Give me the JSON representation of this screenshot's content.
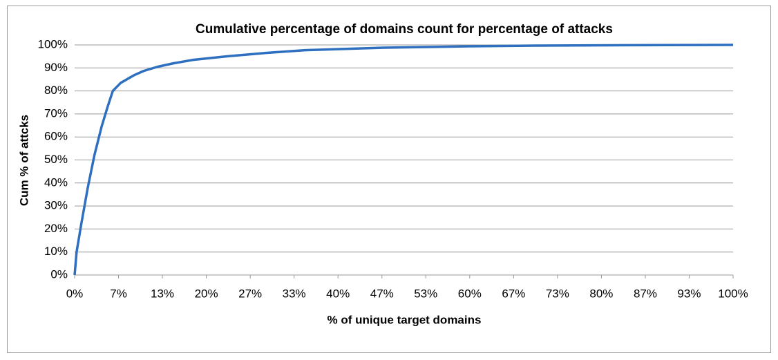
{
  "chart_data": {
    "type": "line",
    "title": "Cumulative percentage of domains count for percentage of attacks",
    "xlabel": "% of unique target domains",
    "ylabel": "Cum % of attcks",
    "x": [
      0,
      0.3,
      1,
      2,
      3,
      4.1,
      5,
      5.8,
      7,
      9,
      10.5,
      12.6,
      15,
      18,
      23,
      29,
      35,
      47,
      60,
      70,
      85,
      100
    ],
    "series": [
      {
        "name": "Cum % of attcks",
        "color": "#2e6fc0",
        "values": [
          0,
          10,
          22,
          38,
          52,
          64.5,
          73,
          80,
          83.5,
          86.8,
          88.7,
          90.5,
          92,
          93.5,
          95,
          96.5,
          97.7,
          98.8,
          99.4,
          99.7,
          99.9,
          100
        ]
      }
    ],
    "xlim": [
      0,
      100
    ],
    "xticks": [
      {
        "value": 0,
        "label": "0%"
      },
      {
        "value": 6.67,
        "label": "7%"
      },
      {
        "value": 13.33,
        "label": "13%"
      },
      {
        "value": 20,
        "label": "20%"
      },
      {
        "value": 26.67,
        "label": "27%"
      },
      {
        "value": 33.33,
        "label": "33%"
      },
      {
        "value": 40,
        "label": "40%"
      },
      {
        "value": 46.67,
        "label": "47%"
      },
      {
        "value": 53.33,
        "label": "53%"
      },
      {
        "value": 60,
        "label": "60%"
      },
      {
        "value": 66.67,
        "label": "67%"
      },
      {
        "value": 73.33,
        "label": "73%"
      },
      {
        "value": 80,
        "label": "80%"
      },
      {
        "value": 86.67,
        "label": "87%"
      },
      {
        "value": 93.33,
        "label": "93%"
      },
      {
        "value": 100,
        "label": "100%"
      }
    ],
    "ylim": [
      0,
      100
    ],
    "yticks": [
      {
        "value": 0,
        "label": "0%"
      },
      {
        "value": 10,
        "label": "10%"
      },
      {
        "value": 20,
        "label": "20%"
      },
      {
        "value": 30,
        "label": "30%"
      },
      {
        "value": 40,
        "label": "40%"
      },
      {
        "value": 50,
        "label": "50%"
      },
      {
        "value": 60,
        "label": "60%"
      },
      {
        "value": 70,
        "label": "70%"
      },
      {
        "value": 80,
        "label": "80%"
      },
      {
        "value": 90,
        "label": "90%"
      },
      {
        "value": 100,
        "label": "100%"
      }
    ],
    "grid": true
  }
}
